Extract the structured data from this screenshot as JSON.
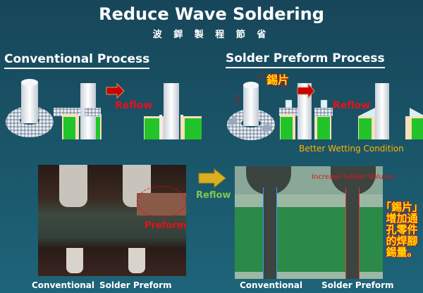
{
  "title": "Reduce Wave Soldering",
  "subtitle": "波 銲 製 程 節 省",
  "conventional": {
    "heading": "Conventional Process",
    "reflow_label": "Reflow"
  },
  "preform": {
    "heading": "Solder Preform Process",
    "preform_label": "錫片",
    "reflow_label": "Reflow",
    "note": "Better Wetting Condition"
  },
  "photos": {
    "reflow_label": "Reflow",
    "preform_label": "Preform",
    "volume_label": "Increase Solder Volume",
    "left_captions": [
      "Conventional",
      "Solder Preform"
    ],
    "right_captions": [
      "Conventional",
      "Solder Preform"
    ],
    "cjk_note": [
      "「錫片」",
      "增加通",
      "孔零件",
      "的焊腳",
      "錫量。"
    ]
  },
  "colors": {
    "background": "#1a5568",
    "pad_green": "#22c42a",
    "accent_red": "#e8101a",
    "accent_yellow": "#ffb400"
  }
}
